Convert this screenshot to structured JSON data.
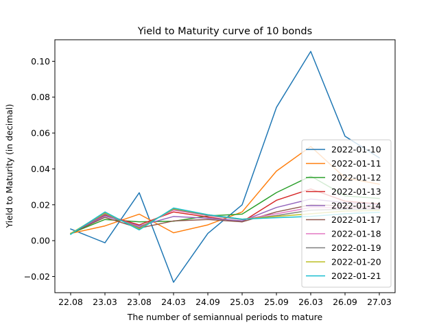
{
  "chart_data": {
    "type": "line",
    "title": "Yield to Maturity curve of 10 bonds",
    "xlabel": "The number of semiannual periods to mature",
    "ylabel": "Yield to Maturity (in decimal)",
    "categories": [
      "22.08",
      "23.03",
      "23.08",
      "24.03",
      "24.09",
      "25.03",
      "25.09",
      "26.03",
      "26.09",
      "27.03"
    ],
    "ylim": [
      -0.029,
      0.112
    ],
    "yticks": [
      -0.02,
      0.0,
      0.02,
      0.04,
      0.06,
      0.08,
      0.1
    ],
    "ytick_labels": [
      "−0.02",
      "0.00",
      "0.02",
      "0.04",
      "0.06",
      "0.08",
      "0.10"
    ],
    "grid": false,
    "legend_position": "lower-right",
    "series": [
      {
        "name": "2022-01-10",
        "color": "#1f77b4",
        "values": [
          0.0065,
          -0.0012,
          0.0267,
          -0.0232,
          0.004,
          0.02,
          0.0743,
          0.1055,
          0.0582,
          0.0462
        ]
      },
      {
        "name": "2022-01-11",
        "color": "#ff7f0e",
        "values": [
          0.004,
          0.0082,
          0.0148,
          0.0044,
          0.0088,
          0.016,
          0.0388,
          0.0525,
          0.035,
          0.0315
        ]
      },
      {
        "name": "2022-01-12",
        "color": "#2ca02c",
        "values": [
          0.004,
          0.0118,
          0.0105,
          0.0108,
          0.0138,
          0.0148,
          0.0268,
          0.036,
          0.025,
          0.0235
        ]
      },
      {
        "name": "2022-01-13",
        "color": "#d62728",
        "values": [
          0.004,
          0.0142,
          0.0088,
          0.016,
          0.0132,
          0.0105,
          0.0225,
          0.0288,
          0.022,
          0.0205
        ]
      },
      {
        "name": "2022-01-14",
        "color": "#9467bd",
        "values": [
          0.004,
          0.0138,
          0.0082,
          0.0135,
          0.0125,
          0.011,
          0.0185,
          0.0232,
          0.0212,
          0.02
        ]
      },
      {
        "name": "2022-01-17",
        "color": "#8c564b",
        "values": [
          0.004,
          0.013,
          0.007,
          0.011,
          0.0118,
          0.0105,
          0.016,
          0.02,
          0.0195,
          0.019
        ]
      },
      {
        "name": "2022-01-18",
        "color": "#e377c2",
        "values": [
          0.004,
          0.0148,
          0.0075,
          0.017,
          0.014,
          0.0118,
          0.015,
          0.0185,
          0.0185,
          0.0182
        ]
      },
      {
        "name": "2022-01-19",
        "color": "#7f7f7f",
        "values": [
          0.004,
          0.015,
          0.0072,
          0.0175,
          0.0142,
          0.0118,
          0.014,
          0.017,
          0.0175,
          0.0175
        ]
      },
      {
        "name": "2022-01-20",
        "color": "#bcbd22",
        "values": [
          0.004,
          0.0155,
          0.0065,
          0.0178,
          0.0145,
          0.012,
          0.0135,
          0.015,
          0.0165,
          0.0168
        ]
      },
      {
        "name": "2022-01-21",
        "color": "#17becf",
        "values": [
          0.0035,
          0.016,
          0.006,
          0.0182,
          0.0145,
          0.012,
          0.0128,
          0.0135,
          0.015,
          0.0158
        ]
      }
    ]
  }
}
